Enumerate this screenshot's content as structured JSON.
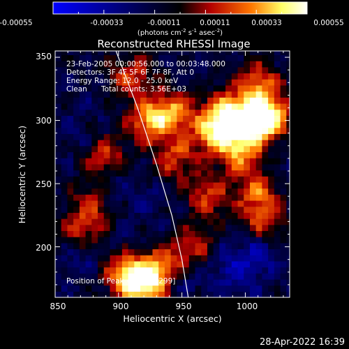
{
  "colorbar": {
    "tick_labels": [
      "-0.00055",
      "-0.00033",
      "-0.00011",
      "0.00011",
      "0.00033",
      "0.00055"
    ],
    "label_main": "(photons cm",
    "label_sup1": "-2",
    "label_mid1": " s",
    "label_sup2": "-1",
    "label_mid2": " asec",
    "label_sup3": "-2",
    "label_end": ")",
    "range": [
      -0.00055,
      0.00055
    ],
    "colors": [
      "#0000ff",
      "#000000",
      "#b40000",
      "#ff7700",
      "#ffff66",
      "#ffffff"
    ]
  },
  "annotations": {
    "line1": "23-Feb-2005 00:00:56.000 to 00:03:48.000",
    "line2": "Detectors: 3F 4F 5F 6F 7F 8F, Att 0",
    "line3": "Energy Range: 12.0 - 25.0 keV",
    "line4a": "Clean",
    "line4b": "Total counts: 3.56E+03",
    "peak": "Position of Peak = [1007,299]"
  },
  "footer": {
    "timestamp": "28-Apr-2022 16:39"
  },
  "chart_data": {
    "type": "heatmap",
    "title": "Reconstructed RHESSI Image",
    "xlabel": "Heliocentric X (arcsec)",
    "ylabel": "Heliocentric Y (arcsec)",
    "xlim": [
      850,
      1035
    ],
    "ylim": [
      160,
      355
    ],
    "x_ticks": [
      850,
      900,
      950,
      1000
    ],
    "y_ticks": [
      200,
      250,
      300,
      350
    ],
    "grid": false,
    "peak_position": [
      1007,
      299
    ],
    "limb_curve": {
      "x": [
        898,
        915,
        930,
        942,
        950,
        955
      ],
      "y": [
        355,
        310,
        265,
        225,
        190,
        160
      ]
    },
    "hot_spots": [
      {
        "x": 1007,
        "y": 299,
        "value": 0.00055
      },
      {
        "x": 985,
        "y": 305,
        "value": 0.0004
      },
      {
        "x": 975,
        "y": 290,
        "value": 0.0003
      },
      {
        "x": 995,
        "y": 275,
        "value": 0.0003
      },
      {
        "x": 925,
        "y": 300,
        "value": 0.00035
      },
      {
        "x": 945,
        "y": 308,
        "value": 0.00025
      },
      {
        "x": 910,
        "y": 335,
        "value": 0.0002
      },
      {
        "x": 1010,
        "y": 330,
        "value": 0.00025
      },
      {
        "x": 1020,
        "y": 305,
        "value": 0.0003
      },
      {
        "x": 890,
        "y": 270,
        "value": 0.0002
      },
      {
        "x": 970,
        "y": 240,
        "value": 0.0002
      },
      {
        "x": 1010,
        "y": 245,
        "value": 0.00025
      },
      {
        "x": 960,
        "y": 200,
        "value": 0.00015
      },
      {
        "x": 1015,
        "y": 220,
        "value": 0.0002
      },
      {
        "x": 920,
        "y": 170,
        "value": 0.00045
      },
      {
        "x": 905,
        "y": 180,
        "value": 0.0003
      },
      {
        "x": 935,
        "y": 185,
        "value": 0.00025
      },
      {
        "x": 870,
        "y": 210,
        "value": 0.0002
      },
      {
        "x": 880,
        "y": 235,
        "value": 0.00015
      },
      {
        "x": 945,
        "y": 270,
        "value": 0.0002
      }
    ],
    "cold_spots": [
      {
        "x": 870,
        "y": 195,
        "value": -0.0003
      },
      {
        "x": 895,
        "y": 250,
        "value": -0.00025
      },
      {
        "x": 925,
        "y": 240,
        "value": -0.0002
      },
      {
        "x": 985,
        "y": 185,
        "value": -0.0003
      },
      {
        "x": 1010,
        "y": 195,
        "value": -0.00035
      },
      {
        "x": 1000,
        "y": 170,
        "value": -0.0002
      },
      {
        "x": 950,
        "y": 175,
        "value": -0.00025
      },
      {
        "x": 865,
        "y": 290,
        "value": -0.0002
      },
      {
        "x": 880,
        "y": 320,
        "value": -0.00015
      },
      {
        "x": 1025,
        "y": 260,
        "value": -0.0002
      },
      {
        "x": 960,
        "y": 340,
        "value": -0.00015
      },
      {
        "x": 910,
        "y": 205,
        "value": -0.0002
      }
    ]
  }
}
